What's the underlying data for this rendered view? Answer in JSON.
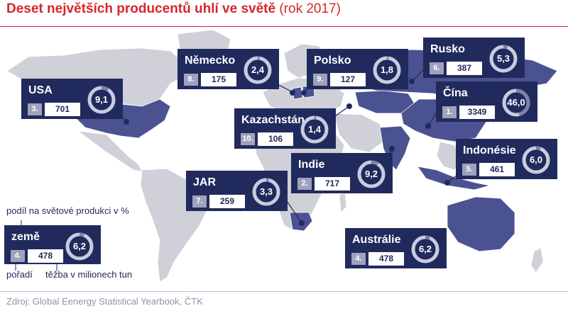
{
  "header": {
    "title_bold": "Deset největších producentů uhlí ve světě",
    "title_suffix": " (rok 2017)"
  },
  "colors": {
    "highlight_country": "#4a5292",
    "other_country": "#cfd0d8",
    "box": "#212a5c",
    "rank_badge": "#9fa2bd",
    "title": "#d7262b"
  },
  "countries": [
    {
      "id": "usa",
      "name": "USA",
      "rank": "3.",
      "production": "701",
      "share": "9,1",
      "share_value": 9.1
    },
    {
      "id": "germany",
      "name": "Německo",
      "rank": "8.",
      "production": "175",
      "share": "2,4",
      "share_value": 2.4
    },
    {
      "id": "poland",
      "name": "Polsko",
      "rank": "9.",
      "production": "127",
      "share": "1,8",
      "share_value": 1.8
    },
    {
      "id": "russia",
      "name": "Rusko",
      "rank": "6.",
      "production": "387",
      "share": "5,3",
      "share_value": 5.3
    },
    {
      "id": "china",
      "name": "Čína",
      "rank": "1.",
      "production": "3349",
      "share": "46,0",
      "share_value": 46.0
    },
    {
      "id": "kazakhstan",
      "name": "Kazachstán",
      "rank": "10.",
      "production": "106",
      "share": "1,4",
      "share_value": 1.4
    },
    {
      "id": "indonesia",
      "name": "Indonésie",
      "rank": "5.",
      "production": "461",
      "share": "6,0",
      "share_value": 6.0
    },
    {
      "id": "india",
      "name": "Indie",
      "rank": "2.",
      "production": "717",
      "share": "9,2",
      "share_value": 9.2
    },
    {
      "id": "sa",
      "name": "JAR",
      "rank": "7.",
      "production": "259",
      "share": "3,3",
      "share_value": 3.3
    },
    {
      "id": "australia",
      "name": "Austrálie",
      "rank": "4.",
      "production": "478",
      "share": "6,2",
      "share_value": 6.2
    }
  ],
  "legend": {
    "share_label": "podíl na světové produkci v %",
    "country_label": "země",
    "rank": "4.",
    "production": "478",
    "share": "6,2",
    "share_value": 6.2,
    "rank_label": "pořadí",
    "production_label": "těžba v milionech tun"
  },
  "source": "Zdroj: Global Eenergy Statistical Yearbook, ČTK"
}
